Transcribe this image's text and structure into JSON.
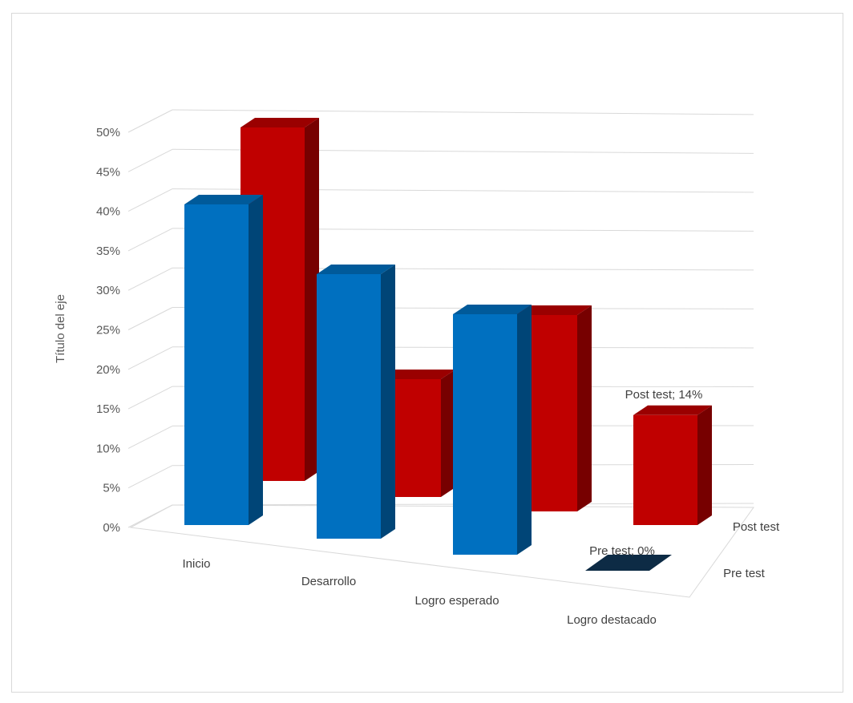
{
  "chart_data": {
    "type": "bar",
    "subtype": "3d-column",
    "ylabel": "Título del eje",
    "categories": [
      "Inicio",
      "Desarrollo",
      "Logro esperado",
      "Logro destacado"
    ],
    "series": [
      {
        "name": "Pre test",
        "values": [
          0.4,
          0.33,
          0.3,
          0.0
        ],
        "color": "#0070c0"
      },
      {
        "name": "Post test",
        "values": [
          0.45,
          0.15,
          0.25,
          0.14
        ],
        "color": "#c00000"
      }
    ],
    "y_ticks": [
      "0%",
      "5%",
      "10%",
      "15%",
      "20%",
      "25%",
      "30%",
      "35%",
      "40%",
      "45%",
      "50%"
    ],
    "ylim": [
      0,
      0.5
    ],
    "data_labels": [
      {
        "series": "Post test",
        "category": "Logro destacado",
        "text": "Post test; 14%"
      },
      {
        "series": "Pre test",
        "category": "Logro destacado",
        "text": "Pre test; 0%"
      }
    ],
    "grid": true
  }
}
